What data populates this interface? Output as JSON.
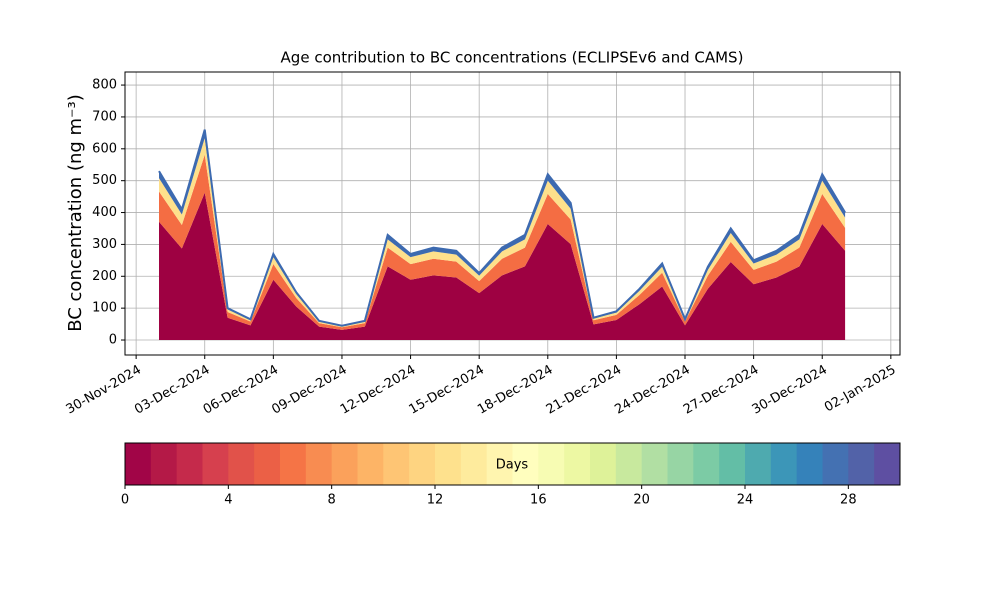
{
  "chart_data": {
    "type": "stacked_area",
    "title": "Age contribution to BC concentrations (ECLIPSEv6 and CAMS)",
    "ylabel": "BC concentration (ng m⁻³)",
    "x": [
      "01-Dec-2024",
      "02-Dec-2024",
      "03-Dec-2024",
      "04-Dec-2024",
      "05-Dec-2024",
      "06-Dec-2024",
      "07-Dec-2024",
      "08-Dec-2024",
      "09-Dec-2024",
      "10-Dec-2024",
      "11-Dec-2024",
      "12-Dec-2024",
      "13-Dec-2024",
      "14-Dec-2024",
      "15-Dec-2024",
      "16-Dec-2024",
      "17-Dec-2024",
      "18-Dec-2024",
      "19-Dec-2024",
      "20-Dec-2024",
      "21-Dec-2024",
      "22-Dec-2024",
      "23-Dec-2024",
      "24-Dec-2024",
      "25-Dec-2024",
      "26-Dec-2024",
      "27-Dec-2024",
      "28-Dec-2024",
      "29-Dec-2024",
      "30-Dec-2024",
      "31-Dec-2024"
    ],
    "series": [
      {
        "color": "#9e0142",
        "values": [
          371,
          287,
          462,
          70,
          46,
          189,
          105,
          42,
          32,
          42,
          231,
          189,
          203,
          196,
          147,
          203,
          231,
          364,
          301,
          49,
          63,
          112,
          168,
          46,
          161,
          245,
          175,
          196,
          231,
          364,
          280
        ]
      },
      {
        "color": "#f46d43",
        "values": [
          95,
          74,
          119,
          18,
          12,
          49,
          27,
          11,
          8,
          11,
          59,
          49,
          52,
          50,
          38,
          52,
          59,
          94,
          77,
          13,
          16,
          29,
          43,
          12,
          41,
          63,
          45,
          50,
          59,
          94,
          72
        ]
      },
      {
        "color": "#fee08b",
        "values": [
          42,
          33,
          53,
          8,
          5,
          22,
          12,
          5,
          4,
          5,
          26,
          22,
          23,
          22,
          17,
          23,
          26,
          42,
          34,
          6,
          7,
          13,
          19,
          5,
          18,
          28,
          20,
          22,
          26,
          42,
          32
        ]
      },
      {
        "color": "#3d6ab0",
        "values": [
          22,
          16,
          26,
          4,
          2,
          10,
          6,
          2,
          1,
          2,
          14,
          10,
          12,
          12,
          8,
          12,
          14,
          20,
          18,
          2,
          4,
          6,
          10,
          2,
          10,
          14,
          10,
          12,
          14,
          20,
          16
        ]
      }
    ],
    "ylim": [
      -47,
      841
    ],
    "yticks": [
      0,
      100,
      200,
      300,
      400,
      500,
      600,
      700,
      800
    ],
    "xticks": [
      "30-Nov-2024",
      "03-Dec-2024",
      "06-Dec-2024",
      "09-Dec-2024",
      "12-Dec-2024",
      "15-Dec-2024",
      "18-Dec-2024",
      "21-Dec-2024",
      "24-Dec-2024",
      "27-Dec-2024",
      "30-Dec-2024",
      "02-Jan-2025"
    ],
    "grid": true,
    "colorbar": {
      "label": "Days",
      "lim": [
        0,
        30
      ],
      "ticks": [
        0,
        4,
        8,
        12,
        16,
        20,
        24,
        28
      ],
      "colors": [
        "#a10547",
        "#b41947",
        "#c52a4b",
        "#d6404e",
        "#e1524a",
        "#eb6046",
        "#f57446",
        "#f88c51",
        "#fba15b",
        "#fdb466",
        "#fec574",
        "#fed481",
        "#fee18d",
        "#feeb9d",
        "#fff5af",
        "#fffebe",
        "#f7fcb3",
        "#edf8a3",
        "#def299",
        "#c8e99e",
        "#b1dfa3",
        "#97d5a4",
        "#7ccba5",
        "#63bea6",
        "#4eaaaf",
        "#3c96b8",
        "#3582ba",
        "#4471b2",
        "#5262a8",
        "#5e4fa2"
      ]
    }
  }
}
